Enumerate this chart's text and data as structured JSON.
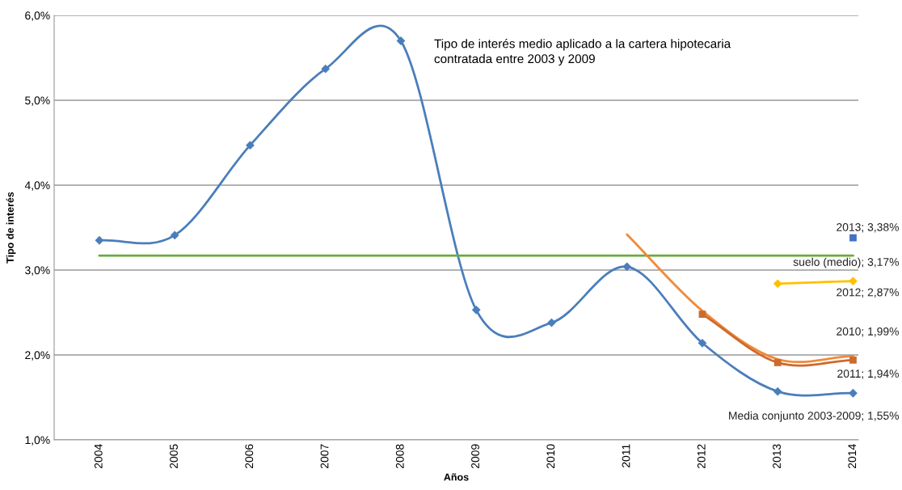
{
  "chart_data": {
    "type": "line",
    "xlabel": "Años",
    "ylabel": "Tipo de interés",
    "categories": [
      "2004",
      "2005",
      "2006",
      "2007",
      "2008",
      "2009",
      "2010",
      "2011",
      "2012",
      "2013",
      "2014"
    ],
    "ylim": [
      1,
      6
    ],
    "yticks": [
      {
        "value": 1,
        "label": "1,0%"
      },
      {
        "value": 2,
        "label": "2,0%"
      },
      {
        "value": 3,
        "label": "3,0%"
      },
      {
        "value": 4,
        "label": "4,0%"
      },
      {
        "value": 5,
        "label": "5,0%"
      },
      {
        "value": 6,
        "label": "6,0%"
      }
    ],
    "grid": "y",
    "legend": false,
    "annotations": [
      "Tipo de interés medio aplicado a la cartera hipotecaria contratada entre 2003 y 2009"
    ],
    "series": [
      {
        "color": "#4a7ebb",
        "marker": "diamond",
        "values": [
          3.35,
          3.41,
          4.47,
          5.37,
          5.7,
          2.53,
          2.38,
          3.04,
          2.14,
          1.57,
          1.55
        ],
        "value_labels": [
          null,
          null,
          null,
          null,
          null,
          null,
          null,
          null,
          null,
          null,
          "Media conjunto 2003-2009; 1,55%"
        ]
      },
      {
        "color": "#6aab3c",
        "marker": "none",
        "values": [
          3.17,
          3.17,
          3.17,
          3.17,
          3.17,
          3.17,
          3.17,
          3.17,
          3.17,
          3.17,
          3.17
        ],
        "value_labels": [
          null,
          null,
          null,
          null,
          null,
          null,
          null,
          null,
          null,
          null,
          "suelo (medio); 3,17%"
        ]
      },
      {
        "color": "#f08a3a",
        "marker": "none",
        "values": [
          null,
          null,
          null,
          null,
          null,
          null,
          null,
          3.42,
          2.52,
          1.95,
          1.99
        ],
        "value_labels": [
          null,
          null,
          null,
          null,
          null,
          null,
          null,
          null,
          null,
          null,
          "2010; 1,99%"
        ]
      },
      {
        "color": "#cd6a2d",
        "marker": "square",
        "values": [
          null,
          null,
          null,
          null,
          null,
          null,
          null,
          null,
          2.48,
          1.91,
          1.94
        ],
        "value_labels": [
          null,
          null,
          null,
          null,
          null,
          null,
          null,
          null,
          null,
          null,
          "2011; 1,94%"
        ]
      },
      {
        "color": "#ffc000",
        "marker": "diamond",
        "values": [
          null,
          null,
          null,
          null,
          null,
          null,
          null,
          null,
          null,
          2.84,
          2.87
        ],
        "value_labels": [
          null,
          null,
          null,
          null,
          null,
          null,
          null,
          null,
          null,
          null,
          "2012; 2,87%"
        ]
      },
      {
        "color": "#4472c4",
        "marker": "square",
        "values": [
          null,
          null,
          null,
          null,
          null,
          null,
          null,
          null,
          null,
          null,
          3.38
        ],
        "value_labels": [
          null,
          null,
          null,
          null,
          null,
          null,
          null,
          null,
          null,
          null,
          "2013; 3,38%"
        ]
      }
    ]
  }
}
